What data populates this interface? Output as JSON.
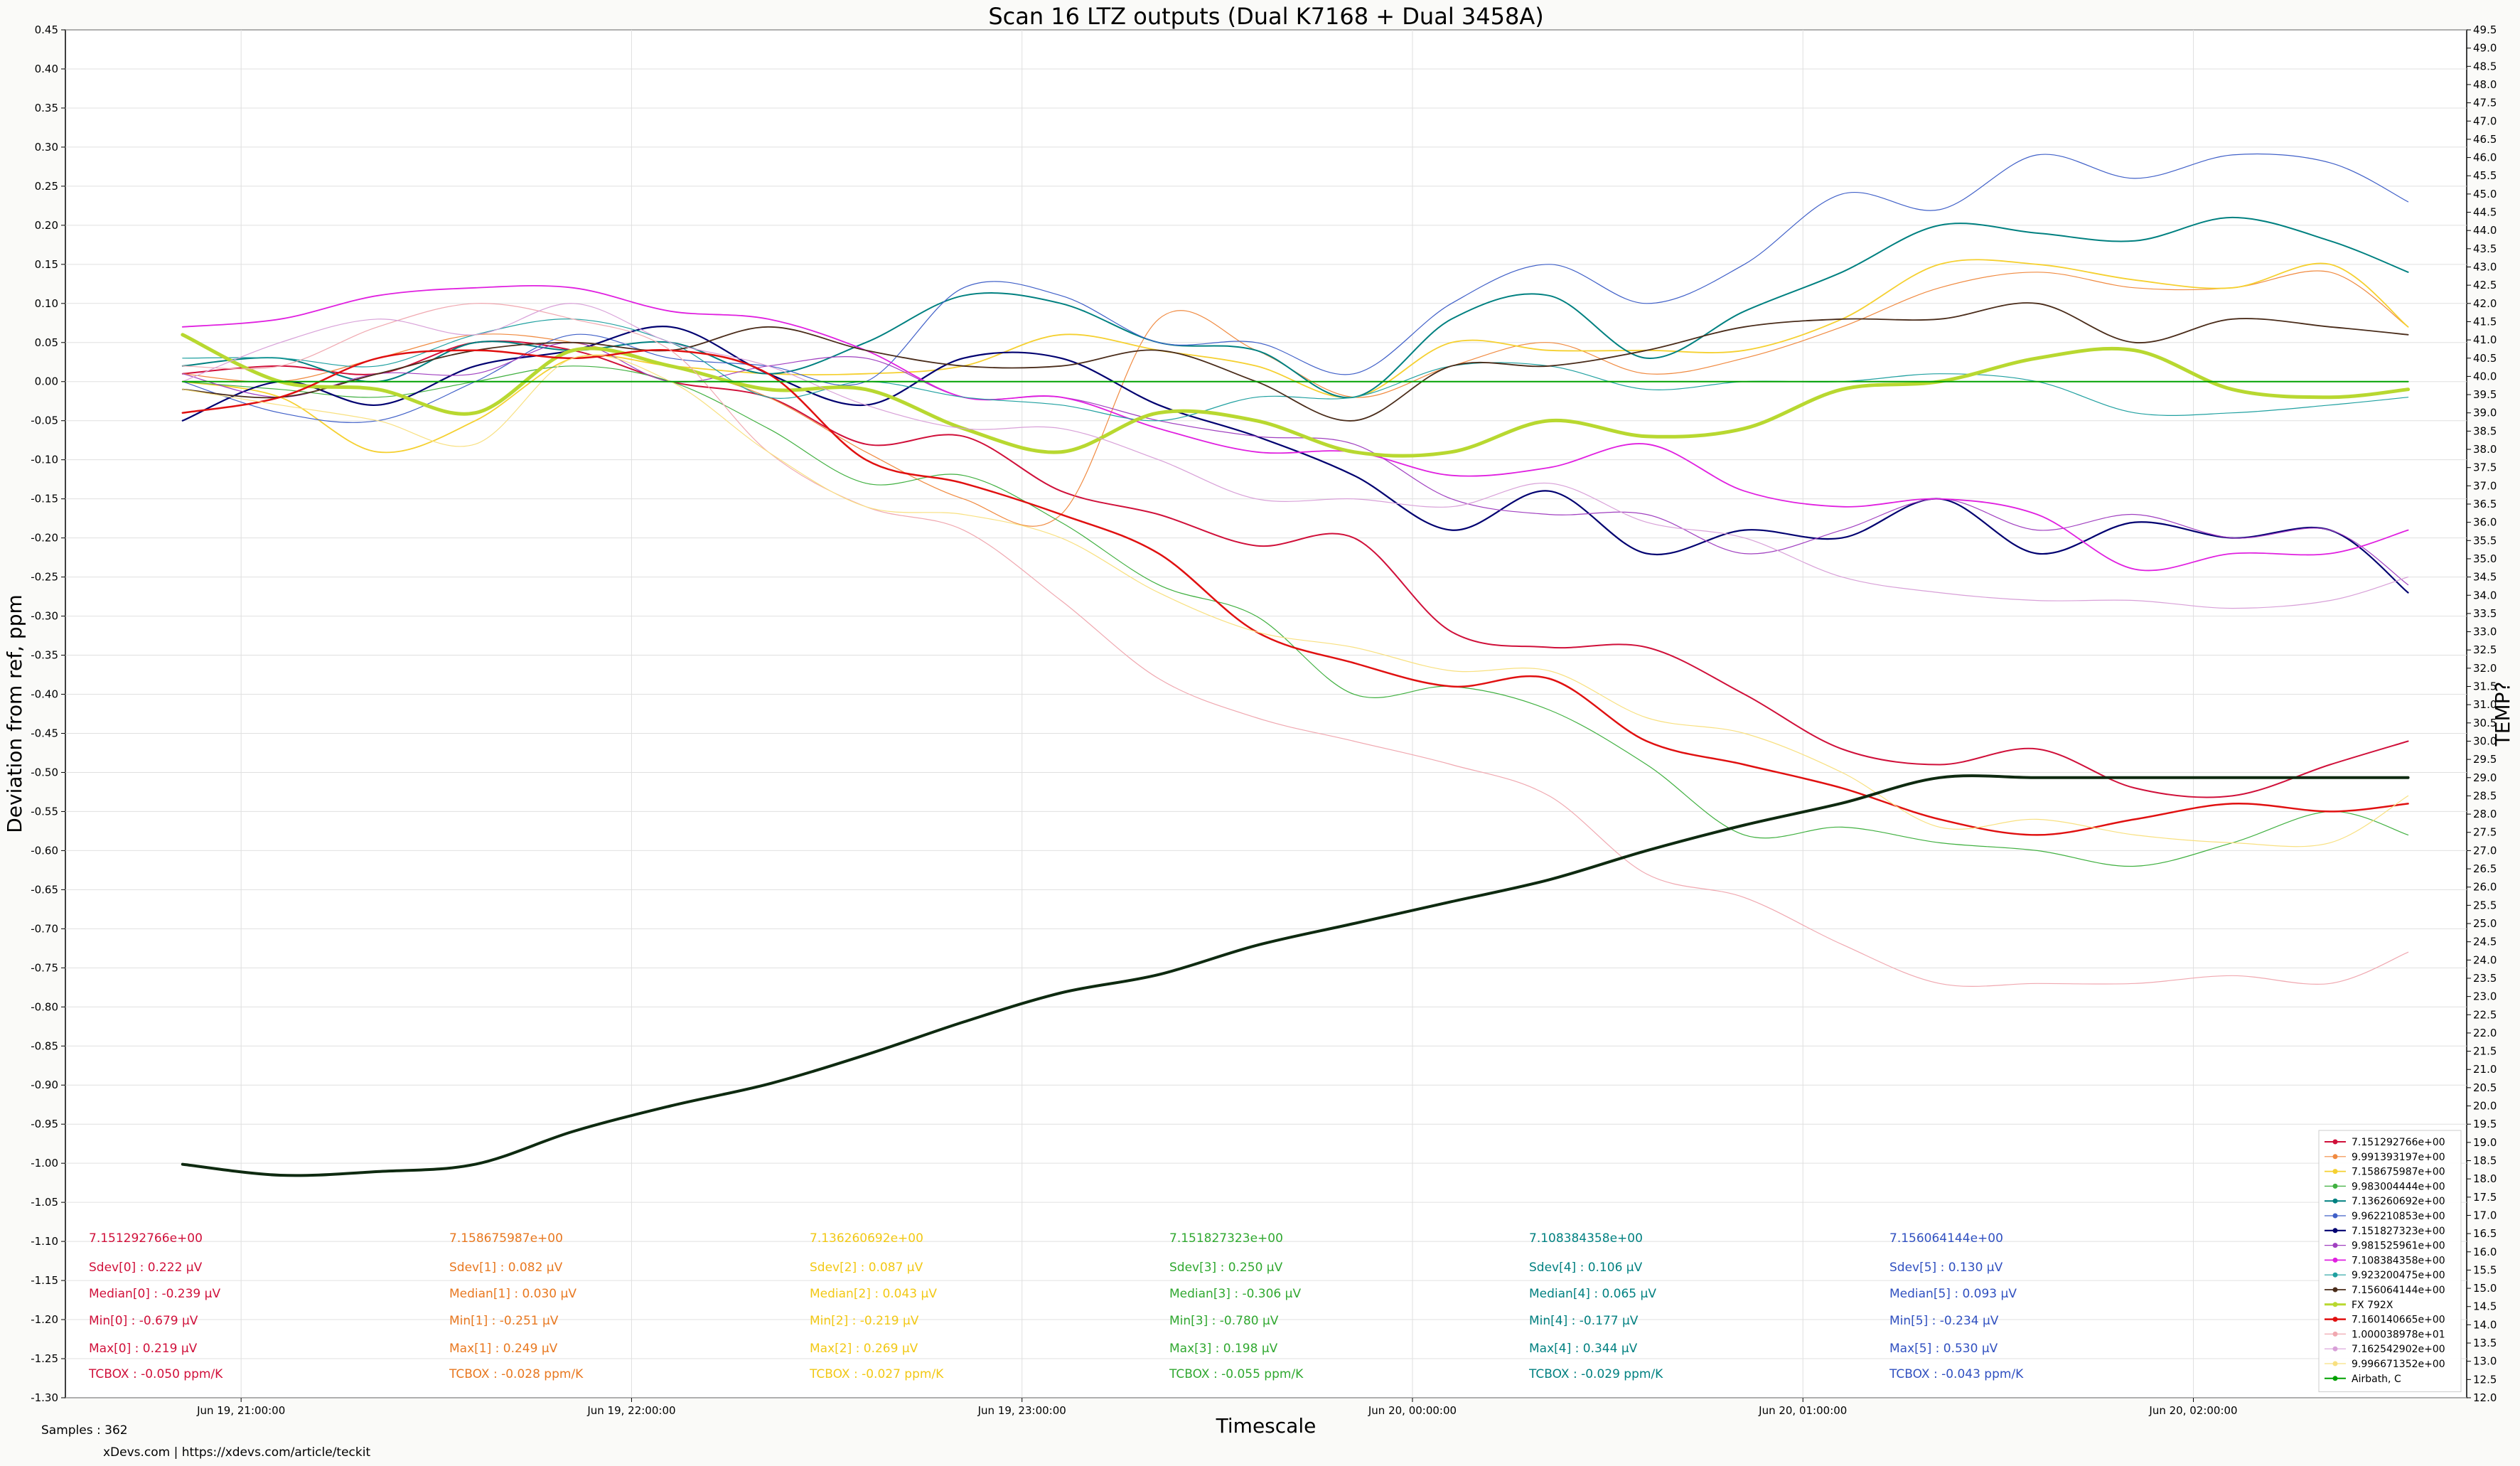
{
  "chart_data": {
    "type": "line",
    "title": "Scan 16 LTZ outputs (Dual K7168 + Dual 3458A)",
    "xlabel": "Timescale",
    "ylabel": "Deviation from ref, ppm",
    "y2label": "TEMP?",
    "ylim": [
      -1.3,
      0.45
    ],
    "y2lim": [
      12.0,
      49.5
    ],
    "xlim": [
      20.55,
      26.7
    ],
    "x_unit": "hours since Jun 19 00:00",
    "grid": true,
    "legend_position": "lower-right",
    "yticks": [
      "0.45",
      "0.40",
      "0.35",
      "0.30",
      "0.25",
      "0.20",
      "0.15",
      "0.10",
      "0.05",
      "0.00",
      "-0.05",
      "-0.10",
      "-0.15",
      "-0.20",
      "-0.25",
      "-0.30",
      "-0.35",
      "-0.40",
      "-0.45",
      "-0.50",
      "-0.55",
      "-0.60",
      "-0.65",
      "-0.70",
      "-0.75",
      "-0.80",
      "-0.85",
      "-0.90",
      "-0.95",
      "-1.00",
      "-1.05",
      "-1.10",
      "-1.15",
      "-1.20",
      "-1.25",
      "-1.30"
    ],
    "y2ticks": [
      "49.5",
      "49.0",
      "48.5",
      "48.0",
      "47.5",
      "47.0",
      "46.5",
      "46.0",
      "45.5",
      "45.0",
      "44.5",
      "44.0",
      "43.5",
      "43.0",
      "42.5",
      "42.0",
      "41.5",
      "41.0",
      "40.5",
      "40.0",
      "39.5",
      "39.0",
      "38.5",
      "38.0",
      "37.5",
      "37.0",
      "36.5",
      "36.0",
      "35.5",
      "35.0",
      "34.5",
      "34.0",
      "33.5",
      "33.0",
      "32.5",
      "32.0",
      "31.5",
      "31.0",
      "30.5",
      "30.0",
      "29.5",
      "29.0",
      "28.5",
      "28.0",
      "27.5",
      "27.0",
      "26.5",
      "26.0",
      "25.5",
      "25.0",
      "24.5",
      "24.0",
      "23.5",
      "23.0",
      "22.5",
      "22.0",
      "21.5",
      "21.0",
      "20.5",
      "20.0",
      "19.5",
      "19.0",
      "18.5",
      "18.0",
      "17.5",
      "17.0",
      "16.5",
      "16.0",
      "15.5",
      "15.0",
      "14.5",
      "14.0",
      "13.5",
      "13.0",
      "12.5",
      "12.0"
    ],
    "xticks": [
      {
        "x": 21,
        "label": "Jun 19, 21:00:00"
      },
      {
        "x": 22,
        "label": "Jun 19, 22:00:00"
      },
      {
        "x": 23,
        "label": "Jun 19, 23:00:00"
      },
      {
        "x": 24,
        "label": "Jun 20, 00:00:00"
      },
      {
        "x": 25,
        "label": "Jun 20, 01:00:00"
      },
      {
        "x": 26,
        "label": "Jun 20, 02:00:00"
      }
    ],
    "x": [
      20.85,
      21.1,
      21.35,
      21.6,
      21.85,
      22.1,
      22.35,
      22.6,
      22.85,
      23.1,
      23.35,
      23.6,
      23.85,
      24.1,
      24.35,
      24.6,
      24.85,
      25.1,
      25.35,
      25.6,
      25.85,
      26.1,
      26.35,
      26.55
    ],
    "series": [
      {
        "name": "7.151292766e+00",
        "color": "#d0103a",
        "width": 2,
        "axis": "left",
        "values": [
          0.01,
          0.02,
          0.01,
          0.05,
          0.04,
          0.0,
          -0.02,
          -0.08,
          -0.07,
          -0.14,
          -0.17,
          -0.21,
          -0.2,
          -0.32,
          -0.34,
          -0.34,
          -0.4,
          -0.47,
          -0.49,
          -0.47,
          -0.52,
          -0.53,
          -0.49,
          -0.46
        ]
      },
      {
        "name": "9.991393197e+00",
        "color": "#f08a40",
        "width": 1.2,
        "axis": "left",
        "values": [
          0.01,
          0.0,
          0.03,
          0.06,
          0.05,
          0.02,
          -0.02,
          -0.09,
          -0.15,
          -0.17,
          0.08,
          0.04,
          -0.02,
          0.02,
          0.05,
          0.01,
          0.03,
          0.07,
          0.12,
          0.14,
          0.12,
          0.12,
          0.14,
          0.07
        ]
      },
      {
        "name": "7.158675987e+00",
        "color": "#f5d030",
        "width": 1.8,
        "axis": "left",
        "values": [
          0.0,
          -0.02,
          -0.09,
          -0.05,
          0.03,
          0.02,
          0.01,
          0.01,
          0.02,
          0.06,
          0.04,
          0.02,
          -0.02,
          0.05,
          0.04,
          0.04,
          0.04,
          0.08,
          0.15,
          0.15,
          0.13,
          0.12,
          0.15,
          0.07
        ]
      },
      {
        "name": "9.983004444e+00",
        "color": "#40b040",
        "width": 1.2,
        "axis": "left",
        "values": [
          0.0,
          -0.01,
          -0.02,
          0.0,
          0.02,
          0.0,
          -0.06,
          -0.13,
          -0.12,
          -0.18,
          -0.26,
          -0.3,
          -0.4,
          -0.39,
          -0.42,
          -0.49,
          -0.58,
          -0.57,
          -0.59,
          -0.6,
          -0.62,
          -0.59,
          -0.55,
          -0.58
        ]
      },
      {
        "name": "7.136260692e+00",
        "color": "#008080",
        "width": 2,
        "axis": "left",
        "values": [
          0.02,
          0.03,
          0.0,
          0.05,
          0.04,
          0.05,
          0.01,
          0.05,
          0.11,
          0.1,
          0.05,
          0.04,
          -0.02,
          0.08,
          0.11,
          0.03,
          0.09,
          0.14,
          0.2,
          0.19,
          0.18,
          0.21,
          0.18,
          0.14
        ]
      },
      {
        "name": "9.962210853e+00",
        "color": "#4060c8",
        "width": 1.2,
        "axis": "left",
        "values": [
          0.0,
          -0.04,
          -0.05,
          0.0,
          0.06,
          0.03,
          0.02,
          0.0,
          0.12,
          0.11,
          0.05,
          0.05,
          0.01,
          0.1,
          0.15,
          0.1,
          0.15,
          0.24,
          0.22,
          0.29,
          0.26,
          0.29,
          0.28,
          0.23
        ]
      },
      {
        "name": "7.151827323e+00",
        "color": "#000070",
        "width": 2.2,
        "axis": "left",
        "values": [
          -0.05,
          0.0,
          -0.03,
          0.02,
          0.04,
          0.07,
          0.01,
          -0.03,
          0.03,
          0.03,
          -0.03,
          -0.07,
          -0.12,
          -0.19,
          -0.14,
          -0.22,
          -0.19,
          -0.2,
          -0.15,
          -0.22,
          -0.18,
          -0.2,
          -0.19,
          -0.27
        ]
      },
      {
        "name": "9.981525961e+00",
        "color": "#a040c0",
        "width": 1.2,
        "axis": "left",
        "values": [
          0.01,
          -0.02,
          0.01,
          0.01,
          0.05,
          0.0,
          0.02,
          0.03,
          -0.02,
          -0.02,
          -0.05,
          -0.07,
          -0.08,
          -0.15,
          -0.17,
          -0.17,
          -0.22,
          -0.19,
          -0.15,
          -0.19,
          -0.17,
          -0.2,
          -0.19,
          -0.26
        ]
      },
      {
        "name": "7.108384358e+00",
        "color": "#e020e0",
        "width": 1.8,
        "axis": "left",
        "values": [
          0.07,
          0.08,
          0.11,
          0.12,
          0.12,
          0.09,
          0.08,
          0.04,
          -0.02,
          -0.02,
          -0.06,
          -0.09,
          -0.09,
          -0.12,
          -0.11,
          -0.08,
          -0.14,
          -0.16,
          -0.15,
          -0.17,
          -0.24,
          -0.22,
          -0.22,
          -0.19
        ]
      },
      {
        "name": "9.923200475e+00",
        "color": "#20a0a0",
        "width": 1.2,
        "axis": "left",
        "values": [
          0.03,
          0.03,
          0.02,
          0.06,
          0.08,
          0.05,
          -0.02,
          0.0,
          -0.02,
          -0.03,
          -0.05,
          -0.02,
          -0.02,
          0.02,
          0.02,
          -0.01,
          0.0,
          0.0,
          0.01,
          0.0,
          -0.04,
          -0.04,
          -0.03,
          -0.02
        ]
      },
      {
        "name": "7.156064144e+00",
        "color": "#4a2c1a",
        "width": 1.8,
        "axis": "left",
        "values": [
          -0.01,
          -0.02,
          0.01,
          0.04,
          0.05,
          0.04,
          0.07,
          0.04,
          0.02,
          0.02,
          0.04,
          0.0,
          -0.05,
          0.02,
          0.02,
          0.04,
          0.07,
          0.08,
          0.08,
          0.1,
          0.05,
          0.08,
          0.07,
          0.06
        ]
      },
      {
        "name": "FX 792X",
        "color": "#b8d830",
        "width": 5,
        "axis": "left",
        "values": [
          0.06,
          0.0,
          -0.01,
          -0.04,
          0.04,
          0.02,
          -0.01,
          -0.01,
          -0.06,
          -0.09,
          -0.04,
          -0.05,
          -0.09,
          -0.09,
          -0.05,
          -0.07,
          -0.06,
          -0.01,
          0.0,
          0.03,
          0.04,
          -0.01,
          -0.02,
          -0.01
        ]
      },
      {
        "name": "7.160140665e+00",
        "color": "#e01010",
        "width": 2.5,
        "axis": "left",
        "values": [
          -0.04,
          -0.02,
          0.03,
          0.04,
          0.03,
          0.04,
          0.01,
          -0.1,
          -0.13,
          -0.17,
          -0.22,
          -0.32,
          -0.36,
          -0.39,
          -0.38,
          -0.46,
          -0.49,
          -0.52,
          -0.56,
          -0.58,
          -0.56,
          -0.54,
          -0.55,
          -0.54
        ]
      },
      {
        "name": "1.000038978e+01",
        "color": "#f0a8b0",
        "width": 1.2,
        "axis": "left",
        "values": [
          0.02,
          0.02,
          0.07,
          0.1,
          0.08,
          0.04,
          -0.09,
          -0.16,
          -0.19,
          -0.28,
          -0.38,
          -0.43,
          -0.46,
          -0.49,
          -0.53,
          -0.63,
          -0.66,
          -0.72,
          -0.77,
          -0.77,
          -0.77,
          -0.76,
          -0.77,
          -0.73
        ]
      },
      {
        "name": "7.162542902e+00",
        "color": "#d8a0d8",
        "width": 1.2,
        "axis": "left",
        "values": [
          0.0,
          0.05,
          0.08,
          0.06,
          0.1,
          0.05,
          0.02,
          -0.03,
          -0.06,
          -0.06,
          -0.1,
          -0.15,
          -0.15,
          -0.16,
          -0.13,
          -0.18,
          -0.2,
          -0.25,
          -0.27,
          -0.28,
          -0.28,
          -0.29,
          -0.28,
          -0.25
        ]
      },
      {
        "name": "9.996671352e+00",
        "color": "#f8e080",
        "width": 1.2,
        "axis": "left",
        "values": [
          -0.01,
          -0.03,
          -0.05,
          -0.08,
          0.03,
          0.0,
          -0.09,
          -0.16,
          -0.17,
          -0.2,
          -0.27,
          -0.32,
          -0.34,
          -0.37,
          -0.37,
          -0.43,
          -0.45,
          -0.5,
          -0.57,
          -0.56,
          -0.58,
          -0.59,
          -0.59,
          -0.53
        ]
      },
      {
        "name": "Airbath, C",
        "color": "#00a000",
        "width": 2,
        "axis": "left",
        "values": [
          0.0,
          0.0,
          0.0,
          0.0,
          0.0,
          0.0,
          0.0,
          0.0,
          0.0,
          0.0,
          0.0,
          0.0,
          0.0,
          0.0,
          0.0,
          0.0,
          0.0,
          0.0,
          0.0,
          0.0,
          0.0,
          0.0,
          0.0,
          0.0
        ]
      },
      {
        "name": "TEMP",
        "color": "#0e2a10",
        "width": 4,
        "axis": "right",
        "values": [
          18.4,
          18.1,
          18.2,
          18.4,
          19.3,
          20.0,
          20.6,
          21.4,
          22.3,
          23.1,
          23.6,
          24.4,
          25.0,
          25.6,
          26.2,
          27.0,
          27.7,
          28.3,
          29.0,
          29.0,
          29.0,
          29.0,
          29.0,
          29.0
        ]
      }
    ]
  },
  "stats": [
    {
      "color": "#d0103a",
      "lines": [
        "7.151292766e+00",
        "Sdev[0] : 0.222 µV",
        "Median[0] : -0.239 µV",
        "Min[0] : -0.679 µV",
        "Max[0] : 0.219 µV",
        "TCBOX : -0.050 ppm/K"
      ]
    },
    {
      "color": "#e87820",
      "lines": [
        "7.158675987e+00",
        "Sdev[1] : 0.082 µV",
        "Median[1] : 0.030 µV",
        "Min[1] : -0.251 µV",
        "Max[1] : 0.249 µV",
        "TCBOX : -0.028 ppm/K"
      ]
    },
    {
      "color": "#f2c814",
      "lines": [
        "7.136260692e+00",
        "Sdev[2] : 0.087 µV",
        "Median[2] : 0.043 µV",
        "Min[2] : -0.219 µV",
        "Max[2] : 0.269 µV",
        "TCBOX : -0.027 ppm/K"
      ]
    },
    {
      "color": "#30a830",
      "lines": [
        "7.151827323e+00",
        "Sdev[3] : 0.250 µV",
        "Median[3] : -0.306 µV",
        "Min[3] : -0.780 µV",
        "Max[3] : 0.198 µV",
        "TCBOX : -0.055 ppm/K"
      ]
    },
    {
      "color": "#008080",
      "lines": [
        "7.108384358e+00",
        "Sdev[4] : 0.106 µV",
        "Median[4] : 0.065 µV",
        "Min[4] : -0.177 µV",
        "Max[4] : 0.344 µV",
        "TCBOX : -0.029 ppm/K"
      ]
    },
    {
      "color": "#3050c0",
      "lines": [
        "7.156064144e+00",
        "Sdev[5] : 0.130 µV",
        "Median[5] : 0.093 µV",
        "Min[5] : -0.234 µV",
        "Max[5] : 0.530 µV",
        "TCBOX : -0.043 ppm/K"
      ]
    }
  ],
  "footer": {
    "samples": "Samples : 362",
    "credit": "xDevs.com | https://xdevs.com/article/teckit"
  }
}
